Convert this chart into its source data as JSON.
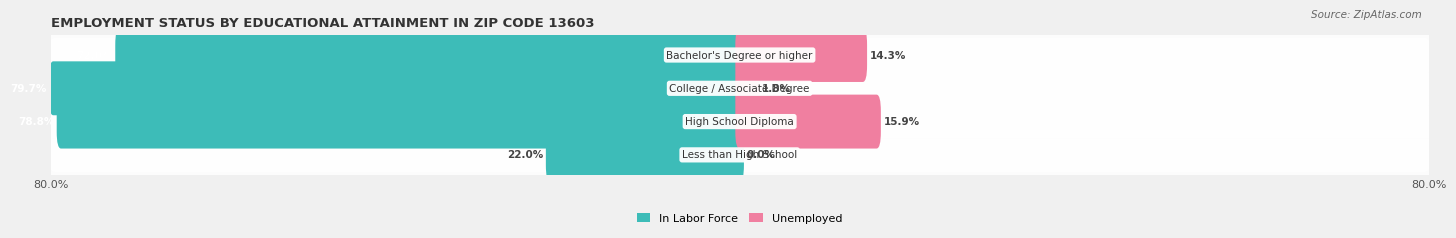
{
  "title": "EMPLOYMENT STATUS BY EDUCATIONAL ATTAINMENT IN ZIP CODE 13603",
  "source": "Source: ZipAtlas.com",
  "categories": [
    "Less than High School",
    "High School Diploma",
    "College / Associate Degree",
    "Bachelor's Degree or higher"
  ],
  "labor_force": [
    22.0,
    78.8,
    79.7,
    72.0
  ],
  "unemployed": [
    0.0,
    15.9,
    1.8,
    14.3
  ],
  "x_min": -80.0,
  "x_max": 80.0,
  "bar_height": 0.62,
  "labor_force_color": "#3dbcb8",
  "unemployed_color": "#f07fa0",
  "background_color": "#f0f0f0",
  "row_bg_color": "#e8e8e8",
  "title_fontsize": 9.5,
  "source_fontsize": 7.5,
  "label_fontsize": 7.5,
  "value_fontsize": 7.5,
  "legend_fontsize": 8,
  "tick_fontsize": 8
}
